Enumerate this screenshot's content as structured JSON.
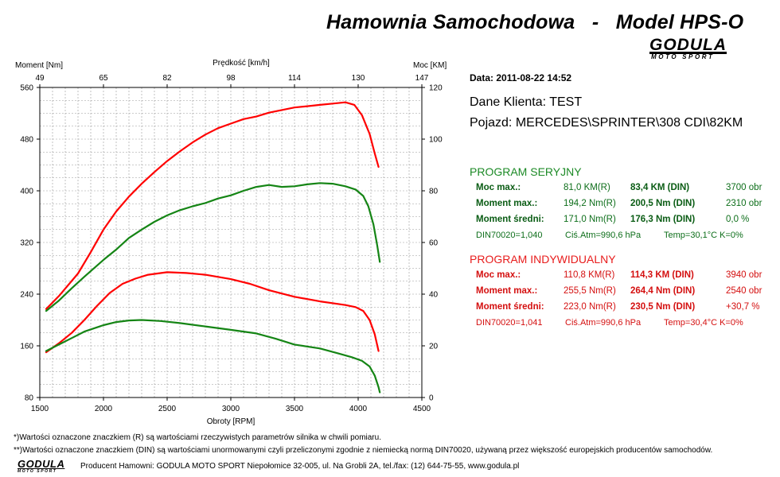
{
  "header": {
    "title": "Hamownia Samochodowa   -   Model HPS-O",
    "logo_main": "GODULA",
    "logo_sub": "MOTO SPORT"
  },
  "chart_data": {
    "type": "line",
    "xlabel": "Obroty [RPM]",
    "ylabel_left": "Moment [Nm]",
    "ylabel_right": "Moc [KM]",
    "top_axis_label": "Prędkość [km/h]",
    "xlim": [
      1500,
      4500
    ],
    "ylim_left": [
      80,
      560
    ],
    "ylim_right": [
      0,
      120
    ],
    "x_ticks": [
      1500,
      2000,
      2500,
      3000,
      3500,
      4000,
      4500
    ],
    "y_left_ticks": [
      80,
      160,
      240,
      320,
      400,
      480,
      560
    ],
    "y_right_ticks": [
      0,
      20,
      40,
      60,
      80,
      100,
      120
    ],
    "top_ticks": [
      "49",
      "65",
      "82",
      "98",
      "114",
      "130",
      "147"
    ],
    "grid": true,
    "series": [
      {
        "color": "#ff0000",
        "axis": "left",
        "points": [
          [
            1550,
            217
          ],
          [
            1650,
            237
          ],
          [
            1800,
            272
          ],
          [
            1900,
            305
          ],
          [
            2000,
            340
          ],
          [
            2100,
            368
          ],
          [
            2200,
            391
          ],
          [
            2300,
            411
          ],
          [
            2400,
            429
          ],
          [
            2500,
            446
          ],
          [
            2600,
            461
          ],
          [
            2700,
            475
          ],
          [
            2800,
            487
          ],
          [
            2900,
            497
          ],
          [
            3000,
            504
          ],
          [
            3100,
            511
          ],
          [
            3200,
            515
          ],
          [
            3300,
            521
          ],
          [
            3400,
            525
          ],
          [
            3500,
            529
          ],
          [
            3600,
            531
          ],
          [
            3700,
            533
          ],
          [
            3800,
            535
          ],
          [
            3900,
            537
          ],
          [
            3970,
            533
          ],
          [
            4030,
            517
          ],
          [
            4090,
            488
          ],
          [
            4130,
            458
          ],
          [
            4160,
            437
          ]
        ]
      },
      {
        "color": "#158515",
        "axis": "left",
        "points": [
          [
            1550,
            214
          ],
          [
            1650,
            230
          ],
          [
            1750,
            249
          ],
          [
            1850,
            267
          ],
          [
            2000,
            293
          ],
          [
            2100,
            309
          ],
          [
            2200,
            327
          ],
          [
            2300,
            340
          ],
          [
            2400,
            352
          ],
          [
            2500,
            362
          ],
          [
            2600,
            370
          ],
          [
            2700,
            376
          ],
          [
            2800,
            381
          ],
          [
            2900,
            388
          ],
          [
            3000,
            393
          ],
          [
            3100,
            400
          ],
          [
            3200,
            406
          ],
          [
            3300,
            409
          ],
          [
            3400,
            406
          ],
          [
            3500,
            407
          ],
          [
            3600,
            410
          ],
          [
            3700,
            412
          ],
          [
            3800,
            411
          ],
          [
            3900,
            407
          ],
          [
            3980,
            402
          ],
          [
            4040,
            392
          ],
          [
            4080,
            376
          ],
          [
            4120,
            348
          ],
          [
            4150,
            315
          ],
          [
            4170,
            290
          ]
        ]
      },
      {
        "color": "#ff0000",
        "axis": "right",
        "points": [
          [
            1550,
            17.5
          ],
          [
            1650,
            21
          ],
          [
            1750,
            25
          ],
          [
            1850,
            30
          ],
          [
            1950,
            35.5
          ],
          [
            2050,
            40.5
          ],
          [
            2150,
            44
          ],
          [
            2250,
            46
          ],
          [
            2350,
            47.5
          ],
          [
            2500,
            48.5
          ],
          [
            2650,
            48.2
          ],
          [
            2800,
            47.5
          ],
          [
            3000,
            45.8
          ],
          [
            3150,
            44
          ],
          [
            3300,
            41.5
          ],
          [
            3500,
            39
          ],
          [
            3700,
            37.2
          ],
          [
            3900,
            35.8
          ],
          [
            3980,
            35
          ],
          [
            4040,
            33.5
          ],
          [
            4090,
            30
          ],
          [
            4130,
            24.5
          ],
          [
            4160,
            18
          ]
        ]
      },
      {
        "color": "#158515",
        "axis": "right",
        "points": [
          [
            1550,
            18
          ],
          [
            1650,
            20.5
          ],
          [
            1750,
            23
          ],
          [
            1850,
            25.5
          ],
          [
            2000,
            28
          ],
          [
            2100,
            29.2
          ],
          [
            2200,
            29.8
          ],
          [
            2300,
            30
          ],
          [
            2450,
            29.6
          ],
          [
            2600,
            28.8
          ],
          [
            2800,
            27.5
          ],
          [
            3000,
            26.2
          ],
          [
            3200,
            24.8
          ],
          [
            3350,
            22.8
          ],
          [
            3500,
            20.5
          ],
          [
            3700,
            19
          ],
          [
            3850,
            17
          ],
          [
            3950,
            15.6
          ],
          [
            4030,
            14.2
          ],
          [
            4090,
            12
          ],
          [
            4130,
            8.5
          ],
          [
            4160,
            4
          ],
          [
            4170,
            2
          ]
        ]
      }
    ]
  },
  "info": {
    "date": "Data: 2011-08-22  14:52",
    "client": "Dane Klienta: TEST",
    "vehicle": "Pojazd: MERCEDES\\SPRINTER\\308 CDI\\82KM"
  },
  "serial": {
    "title": "PROGRAM SERYJNY",
    "rows": [
      {
        "label": "Moc max.:",
        "r": "81,0 KM(R)",
        "din": "83,4 KM (DIN)",
        "obr": "3700 obr"
      },
      {
        "label": "Moment max.:",
        "r": "194,2 Nm(R)",
        "din": "200,5 Nm (DIN)",
        "obr": "2310 obr"
      },
      {
        "label": "Moment średni:",
        "r": "171,0 Nm(R)",
        "din": "176,3 Nm (DIN)",
        "obr": "0,0 %"
      }
    ],
    "din_line": "DIN70020=1,040",
    "atm_line": "Ciś.Atm=990,6 hPa",
    "temp_line": "Temp=30,1°C  K=0%"
  },
  "individual": {
    "title": "PROGRAM INDYWIDUALNY",
    "rows": [
      {
        "label": "Moc max.:",
        "r": "110,8 KM(R)",
        "din": "114,3 KM (DIN)",
        "obr": "3940 obr"
      },
      {
        "label": "Moment max.:",
        "r": "255,5 Nm(R)",
        "din": "264,4 Nm (DIN)",
        "obr": "2540 obr"
      },
      {
        "label": "Moment średni:",
        "r": "223,0 Nm(R)",
        "din": "230,5 Nm (DIN)",
        "obr": "+30,7 %"
      }
    ],
    "din_line": "DIN70020=1,041",
    "atm_line": "Ciś.Atm=990,6 hPa",
    "temp_line": "Temp=30,4°C  K=0%"
  },
  "footer": {
    "note1": "*)Wartości oznaczone znaczkiem (R) są wartościami rzeczywistych parametrów silnika w chwili pomiaru.",
    "note2": "**)Wartości oznaczone znaczkiem (DIN) są wartościami unormowanymi czyli przeliczonymi zgodnie z niemiecką normą DIN70020, używaną przez większość europejskich producentów samochodów.",
    "logo_main": "GODULA",
    "logo_sub": "MOTO SPORT",
    "producer": "Producent Hamowni: GODULA MOTO SPORT Niepołomice 32-005, ul. Na Grobli 2A, tel./fax: (12) 644-75-55, www.godula.pl"
  }
}
